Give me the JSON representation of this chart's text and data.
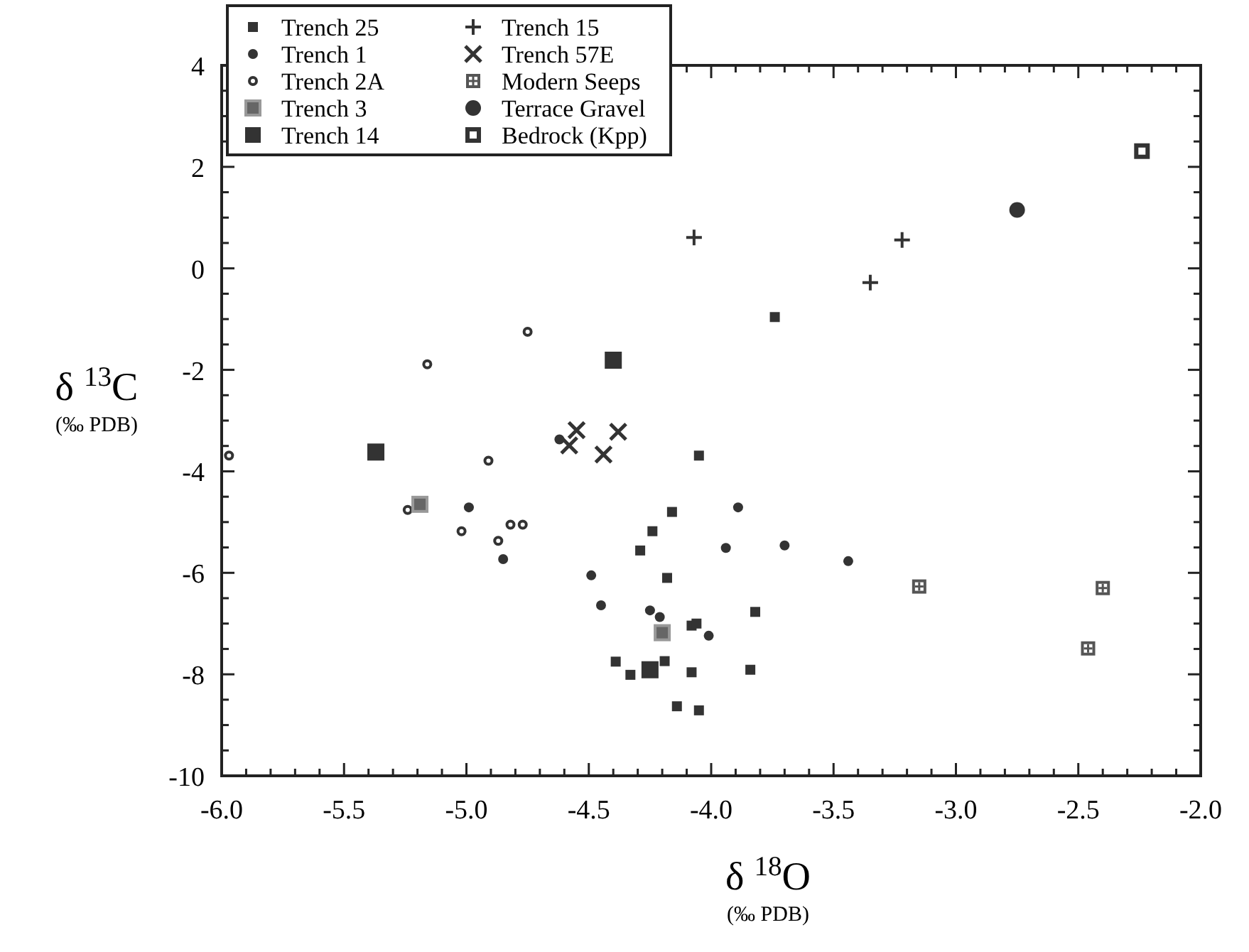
{
  "chart_data": {
    "type": "scatter",
    "xlabel": "δ $^{18}$O\n(‰ PDB)",
    "ylabel": "δ $^{13}$C\n(‰ PDB)",
    "legend": "top left",
    "grid": false,
    "xlim": [
      -6.0,
      -2.0
    ],
    "ylim": [
      -10,
      4
    ],
    "xticks": [
      {
        "value": -6,
        "label": "-6.0"
      },
      {
        "value": -5.9,
        "label": null
      },
      {
        "value": -5.8,
        "label": null
      },
      {
        "value": -5.7,
        "label": null
      },
      {
        "value": -5.6,
        "label": null
      },
      {
        "value": -5.5,
        "label": "-5.5"
      },
      {
        "value": -5.4,
        "label": null
      },
      {
        "value": -5.3,
        "label": null
      },
      {
        "value": -5.2,
        "label": null
      },
      {
        "value": -5.1,
        "label": null
      },
      {
        "value": -5,
        "label": "-5.0"
      },
      {
        "value": -4.9,
        "label": null
      },
      {
        "value": -4.8,
        "label": null
      },
      {
        "value": -4.7,
        "label": null
      },
      {
        "value": -4.6,
        "label": null
      },
      {
        "value": -4.5,
        "label": "-4.5"
      },
      {
        "value": -4.4,
        "label": null
      },
      {
        "value": -4.3,
        "label": null
      },
      {
        "value": -4.2,
        "label": null
      },
      {
        "value": -4.1,
        "label": null
      },
      {
        "value": -4,
        "label": "-4.0"
      },
      {
        "value": -3.9,
        "label": null
      },
      {
        "value": -3.8,
        "label": null
      },
      {
        "value": -3.7,
        "label": null
      },
      {
        "value": -3.6,
        "label": null
      },
      {
        "value": -3.5,
        "label": "-3.5"
      },
      {
        "value": -3.4,
        "label": null
      },
      {
        "value": -3.3,
        "label": null
      },
      {
        "value": -3.2,
        "label": null
      },
      {
        "value": -3.1,
        "label": null
      },
      {
        "value": -3,
        "label": "-3.0"
      },
      {
        "value": -2.9,
        "label": null
      },
      {
        "value": -2.8,
        "label": null
      },
      {
        "value": -2.7,
        "label": null
      },
      {
        "value": -2.6,
        "label": null
      },
      {
        "value": -2.5,
        "label": "-2.5"
      },
      {
        "value": -2.4,
        "label": null
      },
      {
        "value": -2.3,
        "label": null
      },
      {
        "value": -2.2,
        "label": null
      },
      {
        "value": -2.1,
        "label": null
      },
      {
        "value": -2,
        "label": "-2.0"
      }
    ],
    "yticks": [
      -10,
      {
        "value": -9.5,
        "label": null
      },
      {
        "value": -9,
        "label": null
      },
      {
        "value": -8.5,
        "label": null
      },
      -8,
      {
        "value": -7.5,
        "label": null
      },
      {
        "value": -7,
        "label": null
      },
      {
        "value": -6.5,
        "label": null
      },
      -6,
      {
        "value": -5.5,
        "label": null
      },
      {
        "value": -5,
        "label": null
      },
      {
        "value": -4.5,
        "label": null
      },
      -4,
      {
        "value": -3.5,
        "label": null
      },
      {
        "value": -3,
        "label": null
      },
      {
        "value": -2.5,
        "label": null
      },
      -2,
      {
        "value": -1.5,
        "label": null
      },
      {
        "value": -1,
        "label": null
      },
      {
        "value": -0.5,
        "label": null
      },
      0,
      {
        "value": 0.5,
        "label": null
      },
      {
        "value": 1,
        "label": null
      },
      {
        "value": 1.5,
        "label": null
      },
      2,
      {
        "value": 2.5,
        "label": null
      },
      {
        "value": 3,
        "label": null
      },
      {
        "value": 3.5,
        "label": null
      },
      4
    ],
    "series": [
      {
        "name": "Trench 25",
        "color": "#333333",
        "marker": "square",
        "x": [
          -4.05,
          -4.16,
          -4.24,
          -4.29,
          -4.18,
          -3.82,
          -4.08,
          -4.06,
          -4.39,
          -4.33,
          -4.19,
          -4.08,
          -3.84,
          -4.14,
          -4.05,
          -3.74
        ],
        "values": [
          -3.69,
          -4.8,
          -5.18,
          -5.56,
          -6.1,
          -6.77,
          -7.04,
          -7.0,
          -7.75,
          -8.01,
          -7.74,
          -7.96,
          -7.91,
          -8.63,
          -8.71,
          -0.96
        ]
      },
      {
        "name": "Trench 1",
        "color": "#333333",
        "marker": "circle",
        "x": [
          -4.99,
          -4.85,
          -4.62,
          -4.49,
          -4.45,
          -4.25,
          -4.21,
          -4.01,
          -3.89,
          -3.94,
          -3.7,
          -3.44
        ],
        "values": [
          -4.71,
          -5.73,
          -3.37,
          -6.05,
          -6.64,
          -6.74,
          -6.87,
          -7.24,
          -4.71,
          -5.51,
          -5.46,
          -5.77
        ]
      },
      {
        "name": "Trench 2A",
        "color": "#333333",
        "marker": "circle",
        "x": [
          -5.97,
          -5.16,
          -4.91,
          -5.24,
          -5.02,
          -4.87,
          -4.82,
          -4.77,
          -4.75
        ],
        "values": [
          -3.69,
          -1.89,
          -3.79,
          -4.76,
          -5.18,
          -5.37,
          -5.05,
          -5.05,
          -1.25
        ]
      },
      {
        "name": "Trench 3",
        "color": "#666666",
        "marker": "square",
        "x": [
          -5.19,
          -4.2
        ],
        "values": [
          -4.65,
          -7.18
        ]
      },
      {
        "name": "Trench 14",
        "color": "#333333",
        "marker": "square",
        "x": [
          -5.37,
          -4.4,
          -4.25
        ],
        "values": [
          -3.62,
          -1.81,
          -7.91
        ]
      },
      {
        "name": "Trench 15",
        "color": "#333333",
        "marker": "cross",
        "x": [
          -4.07,
          -3.22,
          -3.35
        ],
        "values": [
          0.61,
          0.56,
          -0.28
        ]
      },
      {
        "name": "Trench 57E",
        "color": "#333333",
        "marker": "cross",
        "x": [
          -4.55,
          -4.58,
          -4.38,
          -4.44
        ],
        "values": [
          -3.19,
          -3.49,
          -3.22,
          -3.67
        ]
      },
      {
        "name": "Modern Seeps",
        "color": "#555555",
        "marker": "square",
        "x": [
          -3.15,
          -2.4,
          -2.46
        ],
        "values": [
          -6.27,
          -6.3,
          -7.49
        ]
      },
      {
        "name": "Terrace Gravel",
        "color": "#333333",
        "marker": "circle",
        "x": [
          -2.75
        ],
        "values": [
          1.15
        ]
      },
      {
        "name": "Bedrock (Kpp)",
        "color": "#333333",
        "marker": "square",
        "x": [
          -2.24
        ],
        "values": [
          2.31
        ]
      }
    ]
  }
}
